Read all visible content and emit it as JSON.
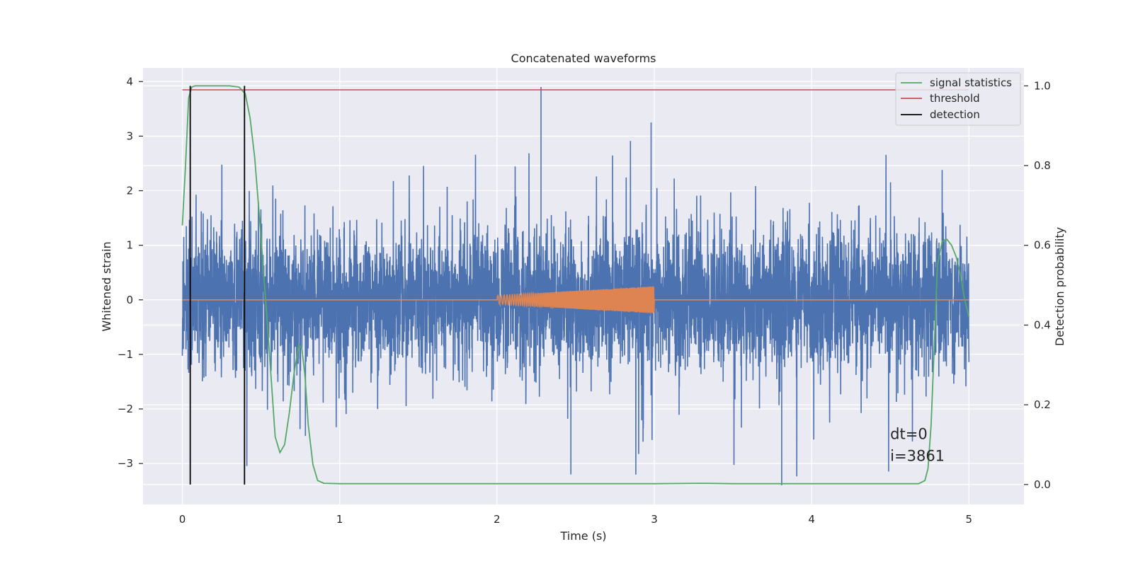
{
  "chart_data": {
    "type": "line",
    "title": "Concatenated waveforms",
    "xlabel": "Time (s)",
    "ylabel_left": "Whitened strain",
    "ylabel_right": "Detection probability",
    "xlim": [
      -0.25,
      5.35
    ],
    "ylim_left": [
      -3.75,
      4.25
    ],
    "ylim_right": [
      -0.05,
      1.045
    ],
    "xticks": [
      0,
      1,
      2,
      3,
      4,
      5
    ],
    "xtick_labels": [
      "0",
      "1",
      "2",
      "3",
      "4",
      "5"
    ],
    "yticks_left": [
      -3,
      -2,
      -1,
      0,
      1,
      2,
      3,
      4
    ],
    "ytick_labels_left": [
      "−3",
      "−2",
      "−1",
      "0",
      "1",
      "2",
      "3",
      "4"
    ],
    "yticks_right": [
      0.0,
      0.2,
      0.4,
      0.6,
      0.8,
      1.0
    ],
    "ytick_labels_right": [
      "0.0",
      "0.2",
      "0.4",
      "0.6",
      "0.8",
      "1.0"
    ],
    "grid": true,
    "legend_position": "top-right",
    "legend": [
      {
        "label": "signal statistics",
        "color": "#55a868"
      },
      {
        "label": "threshold",
        "color": "#c44e52"
      },
      {
        "label": "detection",
        "color": "#000000"
      }
    ],
    "series": [
      {
        "name": "",
        "axis": "left",
        "color": "#4c72b0",
        "description_type": "noise",
        "x_range": [
          0,
          5
        ],
        "typical_range": [
          -1.5,
          1.5
        ],
        "max": 3.9,
        "min": -3.4
      },
      {
        "name": "",
        "axis": "left",
        "color": "#dd8452",
        "description_type": "chirp",
        "x_range": [
          0,
          5
        ],
        "chirp_x_range": [
          2.0,
          3.0
        ],
        "chirp_amplitude_start": 0.08,
        "chirp_amplitude_end": 0.25
      },
      {
        "name": "signal statistics",
        "axis": "right",
        "color": "#55a868",
        "x": [
          0.0,
          0.02,
          0.04,
          0.06,
          0.08,
          0.12,
          0.2,
          0.3,
          0.36,
          0.4,
          0.43,
          0.46,
          0.5,
          0.55,
          0.59,
          0.62,
          0.65,
          0.68,
          0.71,
          0.74,
          0.76,
          0.78,
          0.8,
          0.83,
          0.86,
          0.9,
          1.0,
          1.5,
          2.0,
          2.5,
          3.0,
          3.3,
          3.5,
          4.0,
          4.5,
          4.68,
          4.72,
          4.74,
          4.76,
          4.78,
          4.8,
          4.83,
          4.86,
          4.89,
          4.92,
          4.95,
          4.97,
          5.0
        ],
        "y": [
          0.65,
          0.8,
          0.97,
          0.997,
          1.0,
          1.0,
          1.0,
          1.0,
          0.997,
          0.98,
          0.92,
          0.82,
          0.62,
          0.35,
          0.12,
          0.08,
          0.1,
          0.18,
          0.28,
          0.35,
          0.34,
          0.27,
          0.15,
          0.05,
          0.01,
          0.003,
          0.002,
          0.002,
          0.002,
          0.002,
          0.002,
          0.003,
          0.002,
          0.002,
          0.002,
          0.002,
          0.01,
          0.04,
          0.15,
          0.35,
          0.55,
          0.61,
          0.615,
          0.6,
          0.57,
          0.52,
          0.47,
          0.42
        ]
      },
      {
        "name": "threshold",
        "axis": "right",
        "color": "#c44e52",
        "x": [
          0,
          5
        ],
        "y": [
          0.99,
          0.99
        ]
      }
    ],
    "detections": {
      "x": [
        0.05,
        0.395
      ],
      "color": "#000000"
    },
    "annotations": [
      {
        "text": "dt=0",
        "x": 4.5,
        "y": -2.55
      },
      {
        "text": "i=3861",
        "x": 4.5,
        "y": -2.95
      }
    ]
  }
}
